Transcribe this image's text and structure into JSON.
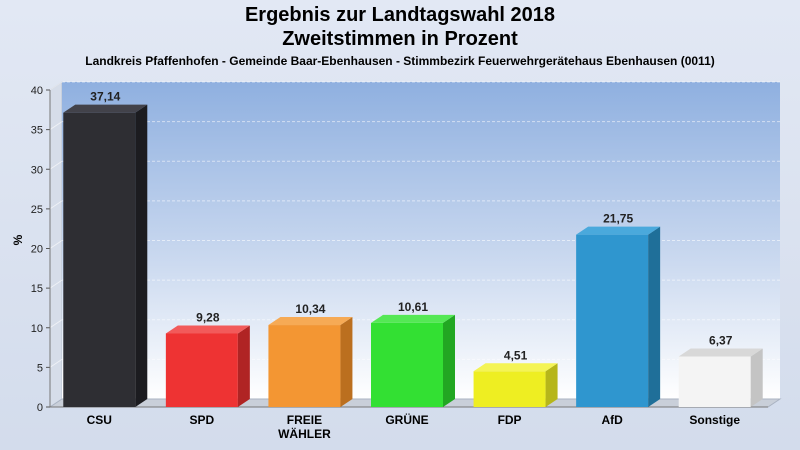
{
  "chart_data": {
    "type": "bar",
    "title": "Ergebnis zur Landtagswahl 2018",
    "subtitle": "Zweitstimmen in Prozent",
    "caption": "Landkreis Pfaffenhofen - Gemeinde Baar-Ebenhausen - Stimmbezirk Feuerwehrgerätehaus Ebenhausen (0011)",
    "ylabel": "%",
    "ylim": [
      0,
      40
    ],
    "yticks": [
      0,
      5,
      10,
      15,
      20,
      25,
      30,
      35,
      40
    ],
    "grid": true,
    "categories": [
      "CSU",
      "SPD",
      "FREIE WÄHLER",
      "GRÜNE",
      "FDP",
      "AfD",
      "Sonstige"
    ],
    "category_lines": [
      [
        "CSU"
      ],
      [
        "SPD"
      ],
      [
        "FREIE",
        "WÄHLER"
      ],
      [
        "GRÜNE"
      ],
      [
        "FDP"
      ],
      [
        "AfD"
      ],
      [
        "Sonstige"
      ]
    ],
    "values": [
      37.14,
      9.28,
      10.34,
      10.61,
      4.51,
      21.75,
      6.37
    ],
    "value_labels": [
      "37,14",
      "9,28",
      "10,34",
      "10,61",
      "4,51",
      "21,75",
      "6,37"
    ],
    "colors": [
      "#2e2e33",
      "#ee3333",
      "#f39633",
      "#33e033",
      "#eeee22",
      "#2f96cf",
      "#f4f4f4"
    ],
    "side_colors": [
      "#1c1c20",
      "#b02424",
      "#bb6f1f",
      "#22a722",
      "#b6b61a",
      "#1f6f99",
      "#c4c4c4"
    ],
    "top_colors": [
      "#42424a",
      "#f25a5a",
      "#f6aa55",
      "#55e855",
      "#f4f455",
      "#4aa9dc",
      "#d8d8d8"
    ]
  }
}
